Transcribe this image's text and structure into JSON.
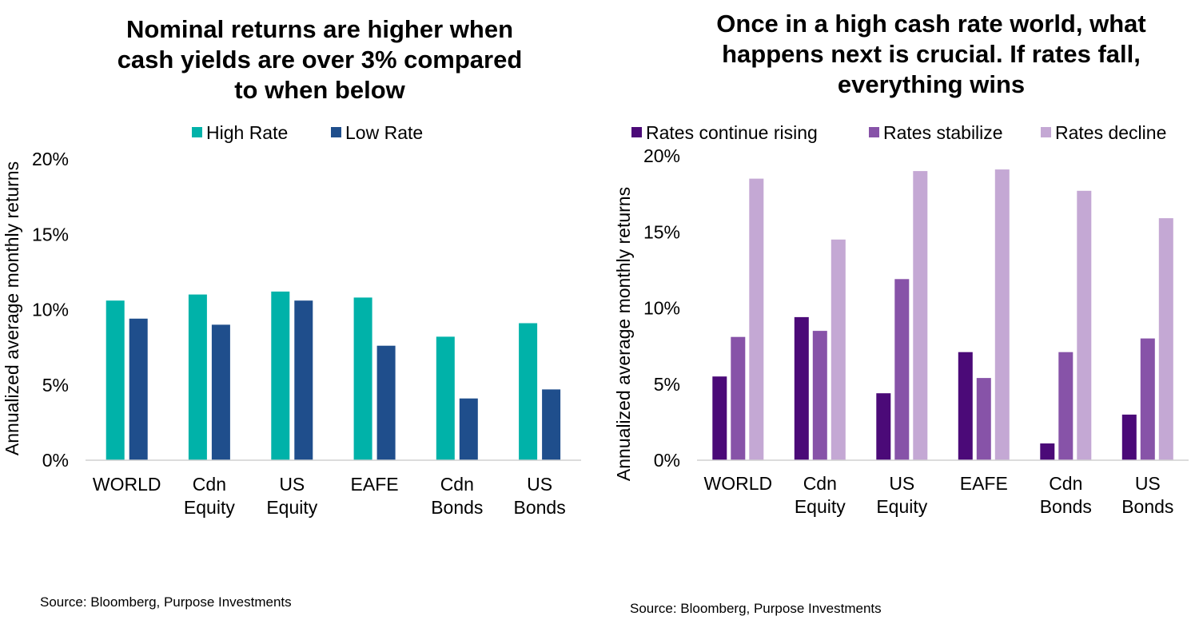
{
  "chart_data": [
    {
      "type": "bar",
      "title": [
        "Nominal returns are higher when",
        "cash yields are over 3% compared",
        "to when below"
      ],
      "ylabel": "Annualized average monthly returns",
      "xlabel": "",
      "ylim": [
        0,
        20
      ],
      "yticks": [
        0,
        5,
        10,
        15,
        20
      ],
      "ytick_labels": [
        "0%",
        "5%",
        "10%",
        "15%",
        "20%"
      ],
      "categories": [
        [
          "WORLD"
        ],
        [
          "Cdn",
          "Equity"
        ],
        [
          "US",
          "Equity"
        ],
        [
          "EAFE"
        ],
        [
          "Cdn",
          "Bonds"
        ],
        [
          "US",
          "Bonds"
        ]
      ],
      "series": [
        {
          "name": "High Rate",
          "color": "#00b2a9",
          "values": [
            10.6,
            11.0,
            11.2,
            10.8,
            8.2,
            9.1
          ]
        },
        {
          "name": "Low Rate",
          "color": "#1f4e8c",
          "values": [
            9.4,
            9.0,
            10.6,
            7.6,
            4.1,
            4.7
          ]
        }
      ],
      "legend_position": "top",
      "grid": false,
      "source": "Source: Bloomberg, Purpose Investments"
    },
    {
      "type": "bar",
      "title": [
        "Once in a high cash rate world, what",
        "happens next is crucial. If rates fall,",
        "everything wins"
      ],
      "ylabel": "Annualized average monthly returns",
      "xlabel": "",
      "ylim": [
        0,
        20
      ],
      "yticks": [
        0,
        5,
        10,
        15,
        20
      ],
      "ytick_labels": [
        "0%",
        "5%",
        "10%",
        "15%",
        "20%"
      ],
      "categories": [
        [
          "WORLD"
        ],
        [
          "Cdn",
          "Equity"
        ],
        [
          "US",
          "Equity"
        ],
        [
          "EAFE"
        ],
        [
          "Cdn",
          "Bonds"
        ],
        [
          "US",
          "Bonds"
        ]
      ],
      "series": [
        {
          "name": "Rates continue rising",
          "color": "#4b0a78",
          "values": [
            5.5,
            9.4,
            4.4,
            7.1,
            1.1,
            3.0
          ]
        },
        {
          "name": "Rates stabilize",
          "color": "#8753a8",
          "values": [
            8.1,
            8.5,
            11.9,
            5.4,
            7.1,
            8.0
          ]
        },
        {
          "name": "Rates decline",
          "color": "#c4a8d4",
          "values": [
            18.5,
            14.5,
            19.0,
            19.1,
            17.7,
            15.9
          ]
        }
      ],
      "legend_position": "top",
      "grid": false,
      "source": "Source: Bloomberg, Purpose Investments"
    }
  ]
}
